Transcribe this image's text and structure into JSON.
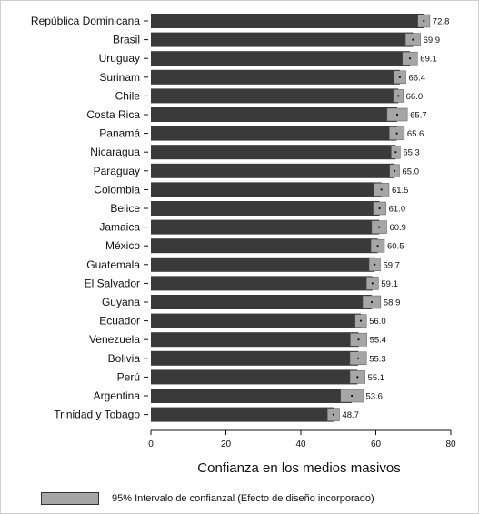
{
  "chart_data": {
    "type": "bar",
    "orientation": "horizontal",
    "title": "",
    "xlabel": "Confianza en los medios masivos",
    "ylabel": "",
    "xlim": [
      0,
      80
    ],
    "xticks": [
      "0",
      "20",
      "40",
      "60",
      "80"
    ],
    "grid": false,
    "legend_position": "bottom",
    "categories": [
      "República Dominicana",
      "Brasil",
      "Uruguay",
      "Surinam",
      "Chile",
      "Costa Rica",
      "Panamá",
      "Nicaragua",
      "Paraguay",
      "Colombia",
      "Belice",
      "Jamaica",
      "México",
      "Guatemala",
      "El Salvador",
      "Guyana",
      "Ecuador",
      "Venezuela",
      "Bolivia",
      "Perú",
      "Argentina",
      "Trinidad y Tobago"
    ],
    "value_labels": [
      "72.8",
      "69.9",
      "69.1",
      "66.4",
      "66.0",
      "65.7",
      "65.6",
      "65.3",
      "65.0",
      "61.5",
      "61.0",
      "60.9",
      "60.5",
      "59.7",
      "59.1",
      "58.9",
      "56.0",
      "55.4",
      "55.3",
      "55.1",
      "53.6",
      "48.7"
    ],
    "series": [
      {
        "values": [
          72.8,
          69.9,
          69.1,
          66.4,
          66.0,
          65.7,
          65.6,
          65.3,
          65.0,
          61.5,
          61.0,
          60.9,
          60.5,
          59.7,
          59.1,
          58.9,
          56.0,
          55.4,
          55.3,
          55.1,
          53.6,
          48.7
        ]
      }
    ],
    "ci_half_width": [
      1.6,
      2.0,
      2.0,
      1.6,
      1.3,
      2.7,
      2.0,
      1.2,
      1.3,
      2.0,
      1.7,
      2.0,
      1.8,
      1.5,
      1.6,
      2.4,
      1.5,
      2.2,
      2.2,
      2.0,
      3.0,
      1.6
    ],
    "legend_label": "95% Intervalo de confianzal (Efecto de diseño incorporado)",
    "colors": {
      "bar": "#3a3a3a",
      "ci": "#a6a6a6",
      "axis": "#111111"
    }
  }
}
